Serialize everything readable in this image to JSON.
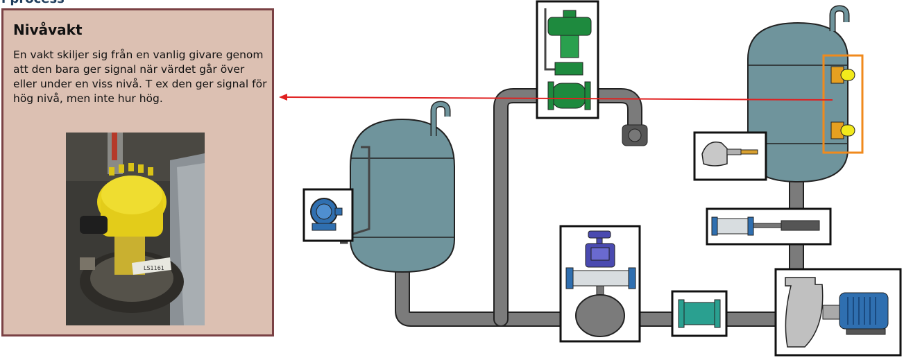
{
  "header": {
    "title": "i process"
  },
  "info": {
    "title": "Nivåvakt",
    "text": "En vakt skiljer sig från en vanlig givare genom att den bara ger signal när värdet går över eller under en viss nivå. T ex den ger signal för hög nivå, men inte hur hög.",
    "photo": {
      "label": "LS1161"
    }
  },
  "colors": {
    "panel_bg": "#dcc0b2",
    "panel_border": "#7a4144",
    "tank": "#6f949c",
    "pipe": "#7b7b7b",
    "highlight": "#f08a1c",
    "pointer": "#e02020"
  }
}
